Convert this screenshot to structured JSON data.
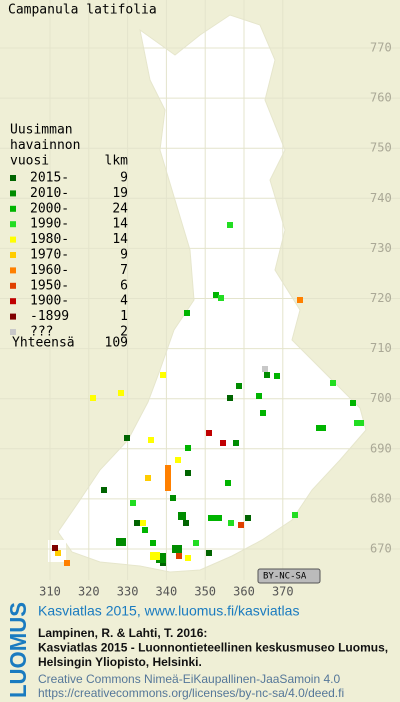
{
  "title": "Campanula latifolia",
  "legend": {
    "heading": [
      "Uusimman",
      "havainnon",
      "vuosi"
    ],
    "count_header": "lkm",
    "entries": [
      {
        "label": "2015-",
        "count": 9,
        "color": "#006400"
      },
      {
        "label": "2010-",
        "count": 19,
        "color": "#008c00"
      },
      {
        "label": "2000-",
        "count": 24,
        "color": "#00b400"
      },
      {
        "label": "1990-",
        "count": 14,
        "color": "#22dd22"
      },
      {
        "label": "1980-",
        "count": 14,
        "color": "#ffff00"
      },
      {
        "label": "1970-",
        "count": 9,
        "color": "#ffcc00"
      },
      {
        "label": "1960-",
        "count": 7,
        "color": "#ff8000"
      },
      {
        "label": "1950-",
        "count": 6,
        "color": "#e04000"
      },
      {
        "label": "1900-",
        "count": 4,
        "color": "#c00000"
      },
      {
        "label": "-1899",
        "count": 1,
        "color": "#800000"
      },
      {
        "label": "???",
        "count": 2,
        "color": "#c8c8c8"
      }
    ],
    "total_label": "Yhteensä",
    "total": 109
  },
  "map": {
    "xticks": [
      310,
      320,
      330,
      340,
      350,
      360,
      370
    ],
    "yticks": [
      670,
      680,
      690,
      700,
      710,
      720,
      730,
      740,
      750,
      760,
      770
    ]
  },
  "license_badge": "BY-NC-SA",
  "footer": {
    "logo": "LUOMUS",
    "link": "Kasviatlas 2015, www.luomus.fi/kasviatlas",
    "citation": [
      "Lampinen, R. & Lahti, T. 2016:",
      "Kasviatlas 2015 - Luonnontieteellinen keskusmuseo Luomus,",
      "Helsingin Yliopisto, Helsinki."
    ],
    "license": [
      "Creative Commons Nimeä-EiKaupallinen-JaaSamoin 4.0",
      "https://creativecommons.org/licenses/by-nc-sa/4.0/deed.fi"
    ]
  }
}
